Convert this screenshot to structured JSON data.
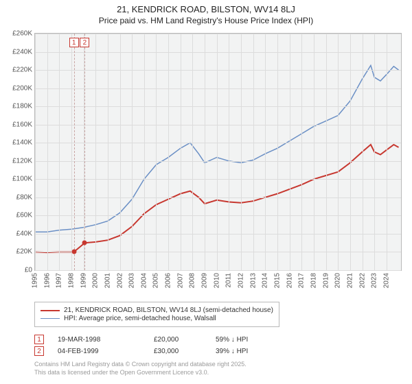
{
  "title_line1": "21, KENDRICK ROAD, BILSTON, WV14 8LJ",
  "title_line2": "Price paid vs. HM Land Registry's House Price Index (HPI)",
  "chart": {
    "type": "line",
    "background_color": "#f2f3f3",
    "grid_color": "#dcdcdc",
    "border_color": "#b8b8b8",
    "x_range": [
      1995,
      2025.2
    ],
    "y_range": [
      0,
      260000
    ],
    "y_tick_step": 20000,
    "y_ticks": [
      "£0",
      "£20K",
      "£40K",
      "£60K",
      "£80K",
      "£100K",
      "£120K",
      "£140K",
      "£160K",
      "£180K",
      "£200K",
      "£220K",
      "£240K",
      "£260K"
    ],
    "x_ticks": [
      1995,
      1996,
      1997,
      1998,
      1999,
      2000,
      2001,
      2002,
      2003,
      2004,
      2005,
      2006,
      2007,
      2008,
      2009,
      2010,
      2011,
      2012,
      2013,
      2014,
      2015,
      2016,
      2017,
      2018,
      2019,
      2020,
      2021,
      2022,
      2023,
      2024
    ],
    "series": [
      {
        "name": "21, KENDRICK ROAD, BILSTON, WV14 8LJ (semi-detached house)",
        "color": "#c7372f",
        "width": 2,
        "points": [
          [
            1995,
            20000
          ],
          [
            1996,
            19500
          ],
          [
            1997,
            20000
          ],
          [
            1998.2,
            20000
          ],
          [
            1999.1,
            30000
          ],
          [
            2000,
            31000
          ],
          [
            2001,
            33000
          ],
          [
            2002,
            38000
          ],
          [
            2003,
            48000
          ],
          [
            2004,
            62000
          ],
          [
            2005,
            72000
          ],
          [
            2006,
            78000
          ],
          [
            2007,
            84000
          ],
          [
            2007.8,
            87000
          ],
          [
            2008.5,
            80000
          ],
          [
            2009,
            73000
          ],
          [
            2010,
            77000
          ],
          [
            2011,
            75000
          ],
          [
            2012,
            74000
          ],
          [
            2013,
            76000
          ],
          [
            2014,
            80000
          ],
          [
            2015,
            84000
          ],
          [
            2016,
            89000
          ],
          [
            2017,
            94000
          ],
          [
            2018,
            100000
          ],
          [
            2019,
            104000
          ],
          [
            2020,
            108000
          ],
          [
            2021,
            118000
          ],
          [
            2022,
            130000
          ],
          [
            2022.7,
            138000
          ],
          [
            2023,
            130000
          ],
          [
            2023.5,
            127000
          ],
          [
            2024,
            132000
          ],
          [
            2024.6,
            138000
          ],
          [
            2025,
            135000
          ]
        ],
        "sale_points": [
          {
            "x": 1998.21,
            "y": 20000
          },
          {
            "x": 1999.1,
            "y": 30000
          }
        ]
      },
      {
        "name": "HPI: Average price, semi-detached house, Walsall",
        "color": "#6a8fc5",
        "width": 1.5,
        "points": [
          [
            1995,
            42000
          ],
          [
            1996,
            42000
          ],
          [
            1997,
            44000
          ],
          [
            1998,
            45000
          ],
          [
            1999,
            47000
          ],
          [
            2000,
            50000
          ],
          [
            2001,
            54000
          ],
          [
            2002,
            63000
          ],
          [
            2003,
            78000
          ],
          [
            2004,
            100000
          ],
          [
            2005,
            116000
          ],
          [
            2006,
            124000
          ],
          [
            2007,
            134000
          ],
          [
            2007.8,
            140000
          ],
          [
            2008.5,
            128000
          ],
          [
            2009,
            118000
          ],
          [
            2010,
            124000
          ],
          [
            2011,
            120000
          ],
          [
            2012,
            118000
          ],
          [
            2013,
            121000
          ],
          [
            2014,
            128000
          ],
          [
            2015,
            134000
          ],
          [
            2016,
            142000
          ],
          [
            2017,
            150000
          ],
          [
            2018,
            158000
          ],
          [
            2019,
            164000
          ],
          [
            2020,
            170000
          ],
          [
            2021,
            186000
          ],
          [
            2022,
            210000
          ],
          [
            2022.7,
            225000
          ],
          [
            2023,
            212000
          ],
          [
            2023.5,
            208000
          ],
          [
            2024,
            215000
          ],
          [
            2024.6,
            224000
          ],
          [
            2025,
            220000
          ]
        ]
      }
    ],
    "markers": [
      {
        "label": "1",
        "x": 1998.21
      },
      {
        "label": "2",
        "x": 1999.1
      }
    ]
  },
  "legend": {
    "rows": [
      {
        "color": "#c7372f",
        "width": 2,
        "label": "21, KENDRICK ROAD, BILSTON, WV14 8LJ (semi-detached house)"
      },
      {
        "color": "#6a8fc5",
        "width": 1.5,
        "label": "HPI: Average price, semi-detached house, Walsall"
      }
    ]
  },
  "events": [
    {
      "num": "1",
      "date": "19-MAR-1998",
      "price": "£20,000",
      "pct": "59% ↓ HPI"
    },
    {
      "num": "2",
      "date": "04-FEB-1999",
      "price": "£30,000",
      "pct": "39% ↓ HPI"
    }
  ],
  "footer_line1": "Contains HM Land Registry data © Crown copyright and database right 2025.",
  "footer_line2": "This data is licensed under the Open Government Licence v3.0."
}
